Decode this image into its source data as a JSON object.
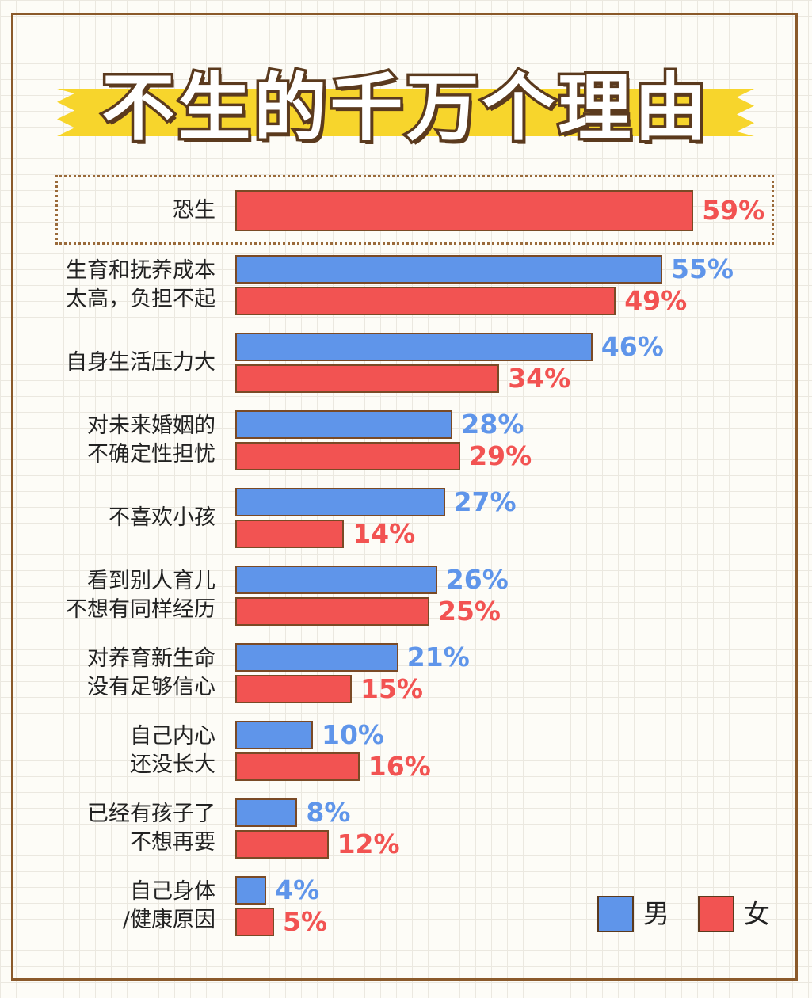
{
  "title": "不生的千万个理由",
  "legend": {
    "male": "男",
    "female": "女"
  },
  "colors": {
    "male": "#5f95ea",
    "female": "#f25352",
    "bar_border": "#7a4a26",
    "banner": "#f7d52c"
  },
  "chart_data": {
    "type": "bar",
    "orientation": "horizontal",
    "title": "不生的千万个理由",
    "categories": [
      [
        "恐生"
      ],
      [
        "生育和抚养成本",
        "太高，负担不起"
      ],
      [
        "自身生活压力大"
      ],
      [
        "对未来婚姻的",
        "不确定性担忧"
      ],
      [
        "不喜欢小孩"
      ],
      [
        "看到别人育儿",
        "不想有同样经历"
      ],
      [
        "对养育新生命",
        "没有足够信心"
      ],
      [
        "自己内心",
        "还没长大"
      ],
      [
        "已经有孩子了",
        "不想再要"
      ],
      [
        "自己身体",
        "/健康原因"
      ]
    ],
    "series": [
      {
        "name": "男",
        "values": [
          null,
          55,
          46,
          28,
          27,
          26,
          21,
          10,
          8,
          4
        ],
        "labels": [
          null,
          "55%",
          "46%",
          "28%",
          "27%",
          "26%",
          "21%",
          "10%",
          "8%",
          "4%"
        ]
      },
      {
        "name": "女",
        "values": [
          59,
          49,
          34,
          29,
          14,
          25,
          15,
          16,
          12,
          5
        ],
        "labels": [
          "59%",
          "49%",
          "34%",
          "29%",
          "14%",
          "25%",
          "15%",
          "16%",
          "12%",
          "5%"
        ]
      }
    ],
    "unit": "%",
    "highlighted_category": "恐生",
    "legend_position": "bottom-right"
  }
}
